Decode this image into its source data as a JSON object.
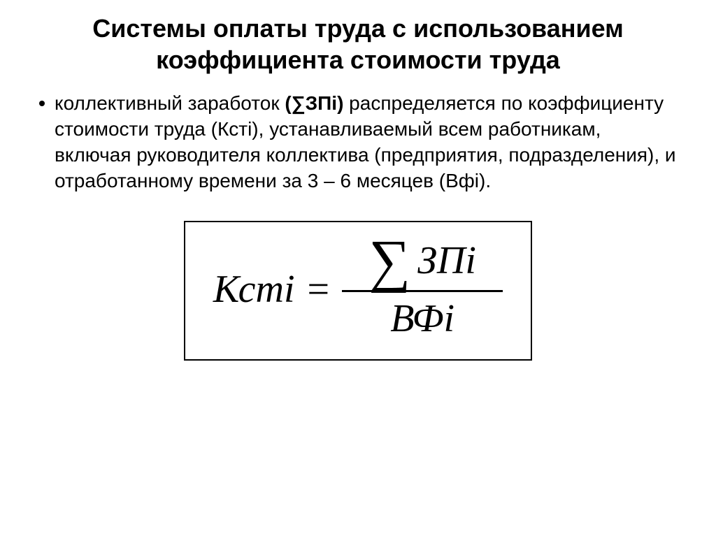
{
  "title": "Системы оплаты труда с использованием коэффициента стоимости труда",
  "body": {
    "part1": "коллективный заработок ",
    "part2_bold": "(∑ЗПi)",
    "part3": " распределяется по коэффициенту стоимости труда (Кстi), устанавливаемый всем работникам, включая руководителя коллектива (предприятия, подразделения), и отработанному времени за 3 – 6 месяцев (Вфi)."
  },
  "formula": {
    "lhs": "Кстi",
    "eq": "=",
    "sigma": "∑",
    "numerator": "ЗПi",
    "denominator": "ВФi"
  },
  "colors": {
    "background": "#ffffff",
    "text": "#000000",
    "border": "#000000"
  }
}
